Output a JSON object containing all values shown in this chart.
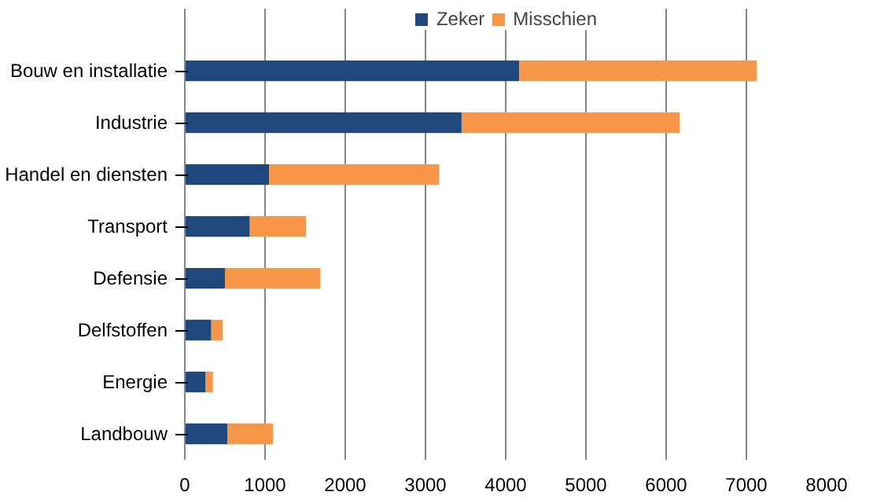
{
  "chart_data": {
    "type": "bar",
    "orientation": "horizontal",
    "stacked": true,
    "categories": [
      "Bouw en installatie",
      "Industrie",
      "Handel en diensten",
      "Transport",
      "Defensie",
      "Delfstoffen",
      "Energie",
      "Landbouw"
    ],
    "series": [
      {
        "name": "Zeker",
        "color": "#1f497d",
        "values": [
          4170,
          3450,
          1050,
          810,
          500,
          330,
          260,
          530
        ]
      },
      {
        "name": "Misschien",
        "color": "#f79646",
        "values": [
          2960,
          2720,
          2120,
          700,
          1190,
          140,
          90,
          570
        ]
      }
    ],
    "xlim": [
      0,
      8000
    ],
    "xticks": [
      0,
      1000,
      2000,
      3000,
      4000,
      5000,
      6000,
      7000,
      8000
    ],
    "grid": "x",
    "legend": "top"
  }
}
